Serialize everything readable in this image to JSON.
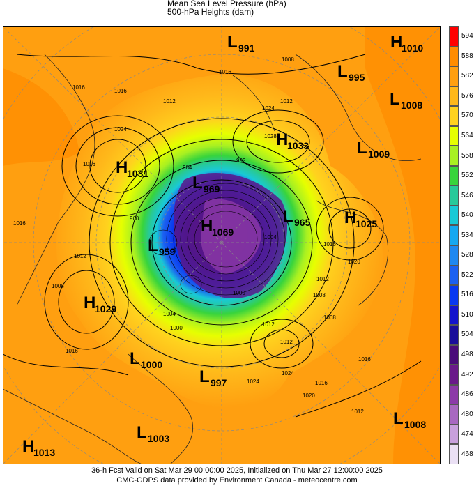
{
  "legend": {
    "mslp_label": "Mean Sea Level Pressure (hPa)",
    "height_label": "500-hPa Heights (dam)"
  },
  "scale": {
    "levels": [
      "594",
      "588",
      "582",
      "576",
      "570",
      "564",
      "558",
      "552",
      "546",
      "540",
      "534",
      "528",
      "522",
      "516",
      "510",
      "504",
      "498",
      "492",
      "486",
      "480",
      "474",
      "468"
    ],
    "colors": [
      "#ff0000",
      "#ff8c00",
      "#ff9f10",
      "#ffb81a",
      "#ffd21e",
      "#e6ff00",
      "#a8f022",
      "#38d43c",
      "#27c99a",
      "#19c9d6",
      "#16a8f0",
      "#1e88f0",
      "#1b60f0",
      "#0838f0",
      "#1414cc",
      "#1a0e9a",
      "#4a0c7a",
      "#6a1a8a",
      "#8c3aa8",
      "#a868c0",
      "#c8a0dc",
      "#eae0f4"
    ]
  },
  "systems": [
    {
      "type": "L",
      "value": "991"
    },
    {
      "type": "H",
      "value": "1010"
    },
    {
      "type": "L",
      "value": "995"
    },
    {
      "type": "L",
      "value": "1008"
    },
    {
      "type": "H",
      "value": "1033"
    },
    {
      "type": "L",
      "value": "1009"
    },
    {
      "type": "H",
      "value": "1031"
    },
    {
      "type": "L",
      "value": "969"
    },
    {
      "type": "H",
      "value": "1069"
    },
    {
      "type": "L",
      "value": "965"
    },
    {
      "type": "H",
      "value": "1025"
    },
    {
      "type": "L",
      "value": "959"
    },
    {
      "type": "H",
      "value": "1029"
    },
    {
      "type": "L",
      "value": "1000"
    },
    {
      "type": "L",
      "value": "997"
    },
    {
      "type": "L",
      "value": "1008"
    },
    {
      "type": "L",
      "value": "1003"
    },
    {
      "type": "H",
      "value": "1013"
    }
  ],
  "isobar_labels": [
    "1016",
    "1008",
    "1012",
    "1016",
    "1024",
    "1028",
    "1012",
    "1016",
    "1012",
    "1008",
    "1016",
    "1016",
    "1024",
    "1012",
    "1024",
    "1016",
    "1020",
    "1008",
    "1016",
    "1012",
    "1016",
    "1020",
    "1016",
    "1004",
    "1000",
    "1008",
    "1024",
    "960",
    "984",
    "992",
    "1000",
    "1012",
    "1004",
    "1012"
  ],
  "footer": {
    "line1": "36-h Fcst Valid on Sat Mar 29 00:00:00 2025, Initialized on Thu Mar 27 12:00:00 2025",
    "line2": "CMC-GDPS data provided by Environment Canada - meteocentre.com"
  }
}
